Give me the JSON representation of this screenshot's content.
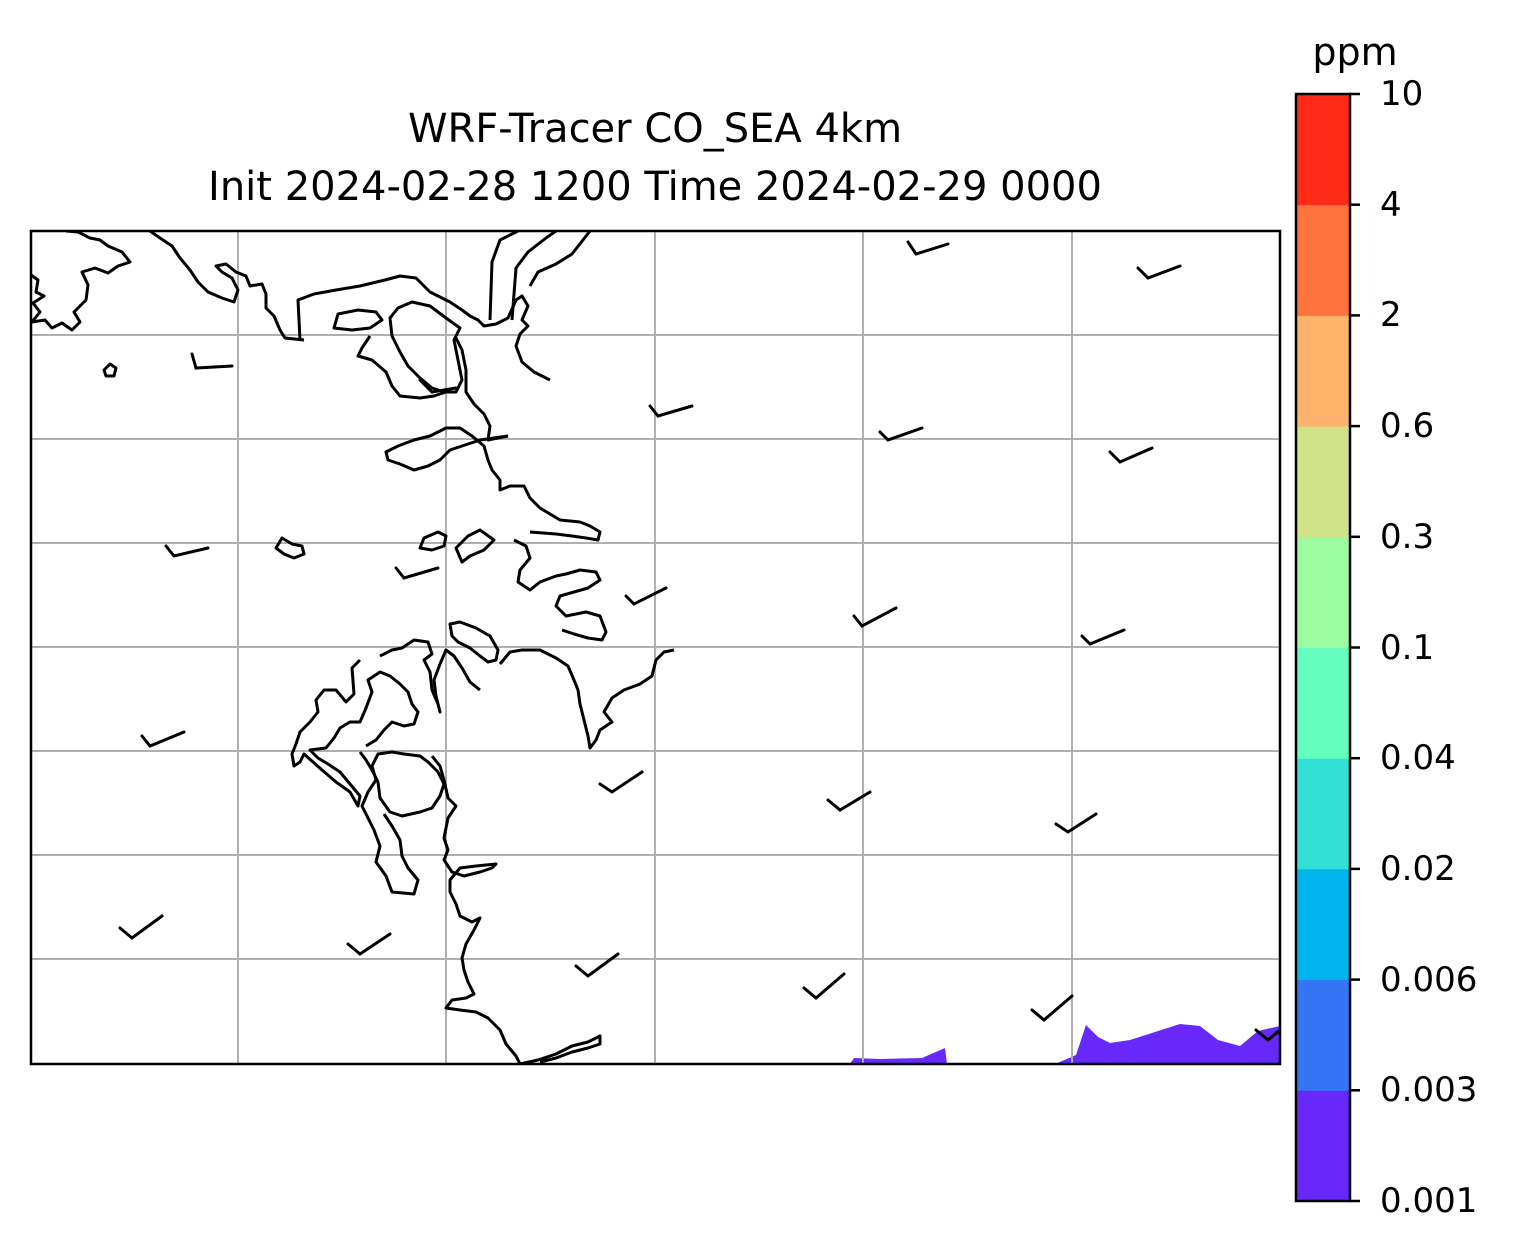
{
  "title": {
    "line1": "WRF-Tracer CO_SEA 4km",
    "line2": "Init 2024-02-28 1200 Time 2024-02-29 0000"
  },
  "colorbar": {
    "unit": "ppm",
    "ticks": [
      "0.001",
      "0.003",
      "0.006",
      "0.02",
      "0.04",
      "0.1",
      "0.3",
      "0.6",
      "2",
      "4",
      "10"
    ],
    "colors": [
      "#6629fa",
      "#3375f4",
      "#00b4ec",
      "#33e0d6",
      "#66ffc0",
      "#9dfca2",
      "#d0e187",
      "#ffb26b",
      "#ff733f",
      "#ff2a17"
    ]
  },
  "map": {
    "gridlines": "on",
    "coastline_color": "#000000",
    "grid_color": "#b0b0b0",
    "wind_barbs": "on"
  }
}
